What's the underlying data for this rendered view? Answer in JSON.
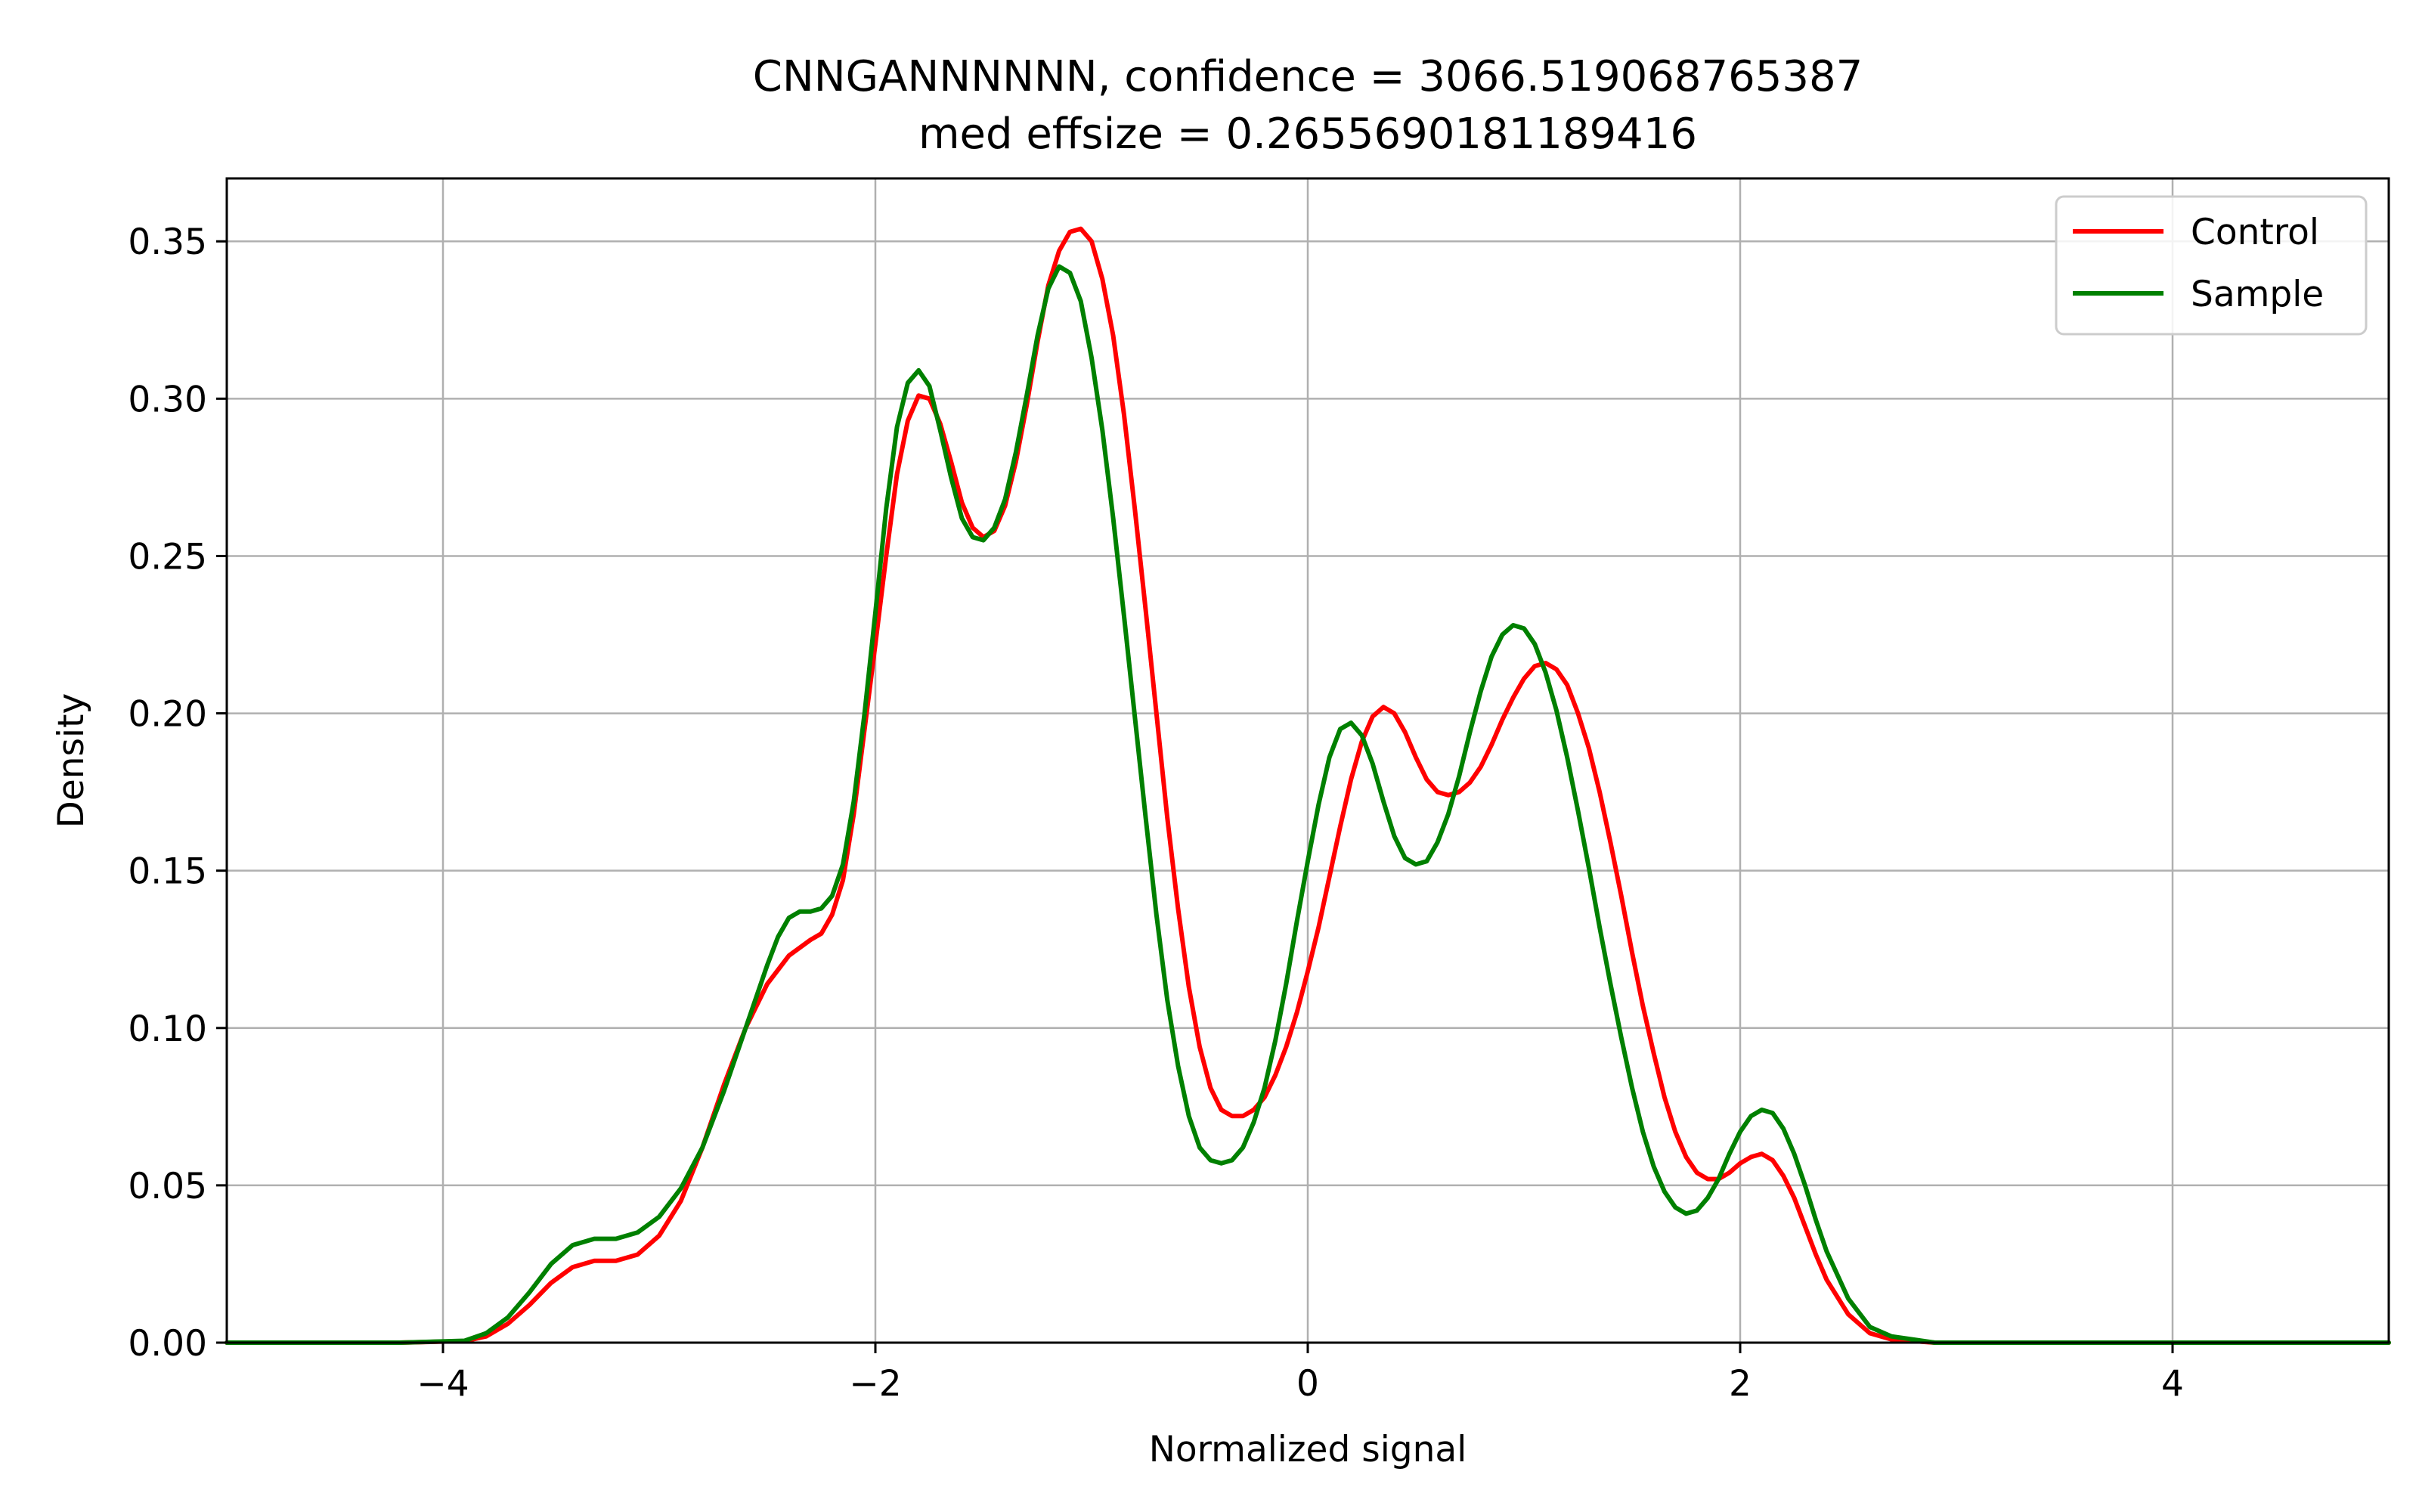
{
  "chart_data": {
    "type": "line",
    "title": "CNNGANNNNNN, confidence = 3066.519068765387",
    "subtitle": "med effsize = 0.2655690181189416",
    "xlabel": "Normalized signal",
    "ylabel": "Density",
    "xlim": [
      -5,
      5
    ],
    "ylim": [
      0,
      0.37
    ],
    "xticks": [
      -4,
      -2,
      0,
      2,
      4
    ],
    "xtick_labels": [
      "−4",
      "−2",
      "0",
      "2",
      "4"
    ],
    "yticks": [
      0.0,
      0.05,
      0.1,
      0.15,
      0.2,
      0.25,
      0.3,
      0.35
    ],
    "ytick_labels": [
      "0.00",
      "0.05",
      "0.10",
      "0.15",
      "0.20",
      "0.25",
      "0.30",
      "0.35"
    ],
    "grid": true,
    "legend_position": "top-right",
    "series": [
      {
        "name": "Control",
        "color": "#ff0000",
        "points": [
          [
            -5.0,
            0.0
          ],
          [
            -4.2,
            0.0
          ],
          [
            -3.9,
            0.0005
          ],
          [
            -3.8,
            0.002
          ],
          [
            -3.7,
            0.006
          ],
          [
            -3.6,
            0.012
          ],
          [
            -3.5,
            0.019
          ],
          [
            -3.4,
            0.024
          ],
          [
            -3.3,
            0.026
          ],
          [
            -3.2,
            0.026
          ],
          [
            -3.1,
            0.028
          ],
          [
            -3.0,
            0.034
          ],
          [
            -2.9,
            0.045
          ],
          [
            -2.8,
            0.062
          ],
          [
            -2.7,
            0.082
          ],
          [
            -2.6,
            0.1
          ],
          [
            -2.5,
            0.114
          ],
          [
            -2.4,
            0.123
          ],
          [
            -2.3,
            0.128
          ],
          [
            -2.25,
            0.13
          ],
          [
            -2.2,
            0.136
          ],
          [
            -2.15,
            0.147
          ],
          [
            -2.1,
            0.168
          ],
          [
            -2.05,
            0.195
          ],
          [
            -2.0,
            0.222
          ],
          [
            -1.95,
            0.25
          ],
          [
            -1.9,
            0.276
          ],
          [
            -1.85,
            0.293
          ],
          [
            -1.8,
            0.301
          ],
          [
            -1.75,
            0.3
          ],
          [
            -1.7,
            0.292
          ],
          [
            -1.65,
            0.28
          ],
          [
            -1.6,
            0.267
          ],
          [
            -1.55,
            0.259
          ],
          [
            -1.5,
            0.256
          ],
          [
            -1.45,
            0.258
          ],
          [
            -1.4,
            0.266
          ],
          [
            -1.35,
            0.28
          ],
          [
            -1.3,
            0.298
          ],
          [
            -1.25,
            0.318
          ],
          [
            -1.2,
            0.336
          ],
          [
            -1.15,
            0.347
          ],
          [
            -1.1,
            0.353
          ],
          [
            -1.05,
            0.354
          ],
          [
            -1.0,
            0.35
          ],
          [
            -0.95,
            0.338
          ],
          [
            -0.9,
            0.32
          ],
          [
            -0.85,
            0.295
          ],
          [
            -0.8,
            0.265
          ],
          [
            -0.75,
            0.233
          ],
          [
            -0.7,
            0.2
          ],
          [
            -0.65,
            0.167
          ],
          [
            -0.6,
            0.138
          ],
          [
            -0.55,
            0.113
          ],
          [
            -0.5,
            0.094
          ],
          [
            -0.45,
            0.081
          ],
          [
            -0.4,
            0.074
          ],
          [
            -0.35,
            0.072
          ],
          [
            -0.3,
            0.072
          ],
          [
            -0.25,
            0.074
          ],
          [
            -0.2,
            0.078
          ],
          [
            -0.15,
            0.085
          ],
          [
            -0.1,
            0.094
          ],
          [
            -0.05,
            0.105
          ],
          [
            0.0,
            0.118
          ],
          [
            0.05,
            0.132
          ],
          [
            0.1,
            0.148
          ],
          [
            0.15,
            0.164
          ],
          [
            0.2,
            0.179
          ],
          [
            0.25,
            0.191
          ],
          [
            0.3,
            0.199
          ],
          [
            0.35,
            0.202
          ],
          [
            0.4,
            0.2
          ],
          [
            0.45,
            0.194
          ],
          [
            0.5,
            0.186
          ],
          [
            0.55,
            0.179
          ],
          [
            0.6,
            0.175
          ],
          [
            0.65,
            0.174
          ],
          [
            0.7,
            0.175
          ],
          [
            0.75,
            0.178
          ],
          [
            0.8,
            0.183
          ],
          [
            0.85,
            0.19
          ],
          [
            0.9,
            0.198
          ],
          [
            0.95,
            0.205
          ],
          [
            1.0,
            0.211
          ],
          [
            1.05,
            0.215
          ],
          [
            1.1,
            0.216
          ],
          [
            1.15,
            0.214
          ],
          [
            1.2,
            0.209
          ],
          [
            1.25,
            0.2
          ],
          [
            1.3,
            0.189
          ],
          [
            1.35,
            0.175
          ],
          [
            1.4,
            0.159
          ],
          [
            1.45,
            0.142
          ],
          [
            1.5,
            0.124
          ],
          [
            1.55,
            0.107
          ],
          [
            1.6,
            0.092
          ],
          [
            1.65,
            0.078
          ],
          [
            1.7,
            0.067
          ],
          [
            1.75,
            0.059
          ],
          [
            1.8,
            0.054
          ],
          [
            1.85,
            0.052
          ],
          [
            1.9,
            0.052
          ],
          [
            1.95,
            0.054
          ],
          [
            2.0,
            0.057
          ],
          [
            2.05,
            0.059
          ],
          [
            2.1,
            0.06
          ],
          [
            2.15,
            0.058
          ],
          [
            2.2,
            0.053
          ],
          [
            2.25,
            0.046
          ],
          [
            2.3,
            0.037
          ],
          [
            2.35,
            0.028
          ],
          [
            2.4,
            0.02
          ],
          [
            2.5,
            0.009
          ],
          [
            2.6,
            0.003
          ],
          [
            2.7,
            0.001
          ],
          [
            2.9,
            0.0
          ],
          [
            5.0,
            0.0
          ]
        ]
      },
      {
        "name": "Sample",
        "color": "#008000",
        "points": [
          [
            -5.0,
            0.0
          ],
          [
            -4.2,
            0.0
          ],
          [
            -3.9,
            0.0006
          ],
          [
            -3.8,
            0.003
          ],
          [
            -3.7,
            0.008
          ],
          [
            -3.6,
            0.016
          ],
          [
            -3.5,
            0.025
          ],
          [
            -3.4,
            0.031
          ],
          [
            -3.3,
            0.033
          ],
          [
            -3.2,
            0.033
          ],
          [
            -3.1,
            0.035
          ],
          [
            -3.0,
            0.04
          ],
          [
            -2.9,
            0.049
          ],
          [
            -2.8,
            0.062
          ],
          [
            -2.7,
            0.08
          ],
          [
            -2.6,
            0.1
          ],
          [
            -2.5,
            0.12
          ],
          [
            -2.45,
            0.129
          ],
          [
            -2.4,
            0.135
          ],
          [
            -2.35,
            0.137
          ],
          [
            -2.3,
            0.137
          ],
          [
            -2.25,
            0.138
          ],
          [
            -2.2,
            0.142
          ],
          [
            -2.15,
            0.152
          ],
          [
            -2.1,
            0.172
          ],
          [
            -2.05,
            0.2
          ],
          [
            -2.0,
            0.232
          ],
          [
            -1.95,
            0.265
          ],
          [
            -1.9,
            0.291
          ],
          [
            -1.85,
            0.305
          ],
          [
            -1.8,
            0.309
          ],
          [
            -1.75,
            0.304
          ],
          [
            -1.7,
            0.29
          ],
          [
            -1.65,
            0.275
          ],
          [
            -1.6,
            0.262
          ],
          [
            -1.55,
            0.256
          ],
          [
            -1.5,
            0.255
          ],
          [
            -1.45,
            0.259
          ],
          [
            -1.4,
            0.268
          ],
          [
            -1.35,
            0.283
          ],
          [
            -1.3,
            0.301
          ],
          [
            -1.25,
            0.32
          ],
          [
            -1.2,
            0.335
          ],
          [
            -1.15,
            0.342
          ],
          [
            -1.1,
            0.34
          ],
          [
            -1.05,
            0.331
          ],
          [
            -1.0,
            0.313
          ],
          [
            -0.95,
            0.29
          ],
          [
            -0.9,
            0.262
          ],
          [
            -0.85,
            0.231
          ],
          [
            -0.8,
            0.199
          ],
          [
            -0.75,
            0.167
          ],
          [
            -0.7,
            0.136
          ],
          [
            -0.65,
            0.109
          ],
          [
            -0.6,
            0.088
          ],
          [
            -0.55,
            0.072
          ],
          [
            -0.5,
            0.062
          ],
          [
            -0.45,
            0.058
          ],
          [
            -0.4,
            0.057
          ],
          [
            -0.35,
            0.058
          ],
          [
            -0.3,
            0.062
          ],
          [
            -0.25,
            0.07
          ],
          [
            -0.2,
            0.081
          ],
          [
            -0.15,
            0.096
          ],
          [
            -0.1,
            0.114
          ],
          [
            -0.05,
            0.134
          ],
          [
            0.0,
            0.153
          ],
          [
            0.05,
            0.171
          ],
          [
            0.1,
            0.186
          ],
          [
            0.15,
            0.195
          ],
          [
            0.2,
            0.197
          ],
          [
            0.25,
            0.193
          ],
          [
            0.3,
            0.184
          ],
          [
            0.35,
            0.172
          ],
          [
            0.4,
            0.161
          ],
          [
            0.45,
            0.154
          ],
          [
            0.5,
            0.152
          ],
          [
            0.55,
            0.153
          ],
          [
            0.6,
            0.159
          ],
          [
            0.65,
            0.168
          ],
          [
            0.7,
            0.18
          ],
          [
            0.75,
            0.194
          ],
          [
            0.8,
            0.207
          ],
          [
            0.85,
            0.218
          ],
          [
            0.9,
            0.225
          ],
          [
            0.95,
            0.228
          ],
          [
            1.0,
            0.227
          ],
          [
            1.05,
            0.222
          ],
          [
            1.1,
            0.213
          ],
          [
            1.15,
            0.201
          ],
          [
            1.2,
            0.186
          ],
          [
            1.25,
            0.169
          ],
          [
            1.3,
            0.151
          ],
          [
            1.35,
            0.132
          ],
          [
            1.4,
            0.114
          ],
          [
            1.45,
            0.097
          ],
          [
            1.5,
            0.081
          ],
          [
            1.55,
            0.067
          ],
          [
            1.6,
            0.056
          ],
          [
            1.65,
            0.048
          ],
          [
            1.7,
            0.043
          ],
          [
            1.75,
            0.041
          ],
          [
            1.8,
            0.042
          ],
          [
            1.85,
            0.046
          ],
          [
            1.9,
            0.052
          ],
          [
            1.95,
            0.06
          ],
          [
            2.0,
            0.067
          ],
          [
            2.05,
            0.072
          ],
          [
            2.1,
            0.074
          ],
          [
            2.15,
            0.073
          ],
          [
            2.2,
            0.068
          ],
          [
            2.25,
            0.06
          ],
          [
            2.3,
            0.05
          ],
          [
            2.35,
            0.039
          ],
          [
            2.4,
            0.029
          ],
          [
            2.5,
            0.014
          ],
          [
            2.6,
            0.005
          ],
          [
            2.7,
            0.002
          ],
          [
            2.9,
            0.0
          ],
          [
            5.0,
            0.0
          ]
        ]
      }
    ]
  }
}
